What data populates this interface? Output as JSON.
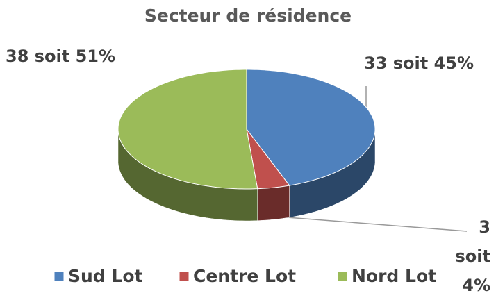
{
  "chart_data": {
    "type": "pie3d",
    "title": "Secteur de résidence",
    "categories": [
      "Sud Lot",
      "Centre Lot",
      "Nord Lot"
    ],
    "values": [
      33,
      3,
      38
    ],
    "value_labels": [
      "33 soit 45%",
      "3 soit 4%",
      "38 soit 51%"
    ],
    "colors": [
      "#4f81bd",
      "#c0504d",
      "#9bbb59"
    ],
    "legend": "bottom"
  }
}
